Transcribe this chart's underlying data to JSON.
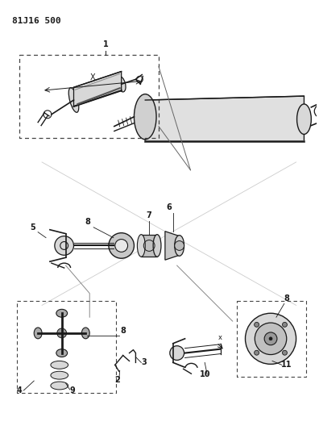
{
  "title": "81J16 500",
  "bg_color": "#ffffff",
  "line_color": "#1a1a1a",
  "figsize": [
    3.96,
    5.33
  ],
  "dpi": 100,
  "gray_light": "#d8d8d8",
  "gray_mid": "#aaaaaa",
  "gray_dark": "#555555"
}
